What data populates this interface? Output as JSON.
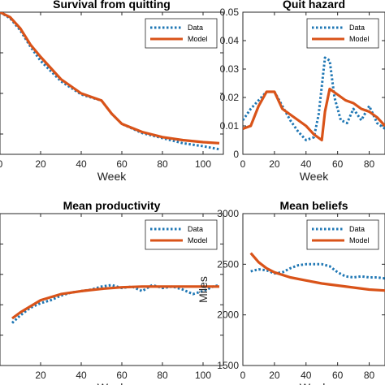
{
  "colors": {
    "data": "#1F77B4",
    "model": "#D95319",
    "axis": "#262626"
  },
  "chart_data": [
    {
      "type": "line",
      "title": "Survival from quitting",
      "xlabel": "Week",
      "ylabel": "",
      "xlim": [
        0,
        110
      ],
      "x_ticks": [
        "0",
        "20",
        "40",
        "60",
        "80",
        "100"
      ],
      "y_ticks": [],
      "legend": {
        "position": "top-right",
        "entries": [
          "Data",
          "Model"
        ]
      },
      "series": [
        {
          "name": "Data",
          "style": "dotted",
          "x": [
            0,
            5,
            10,
            15,
            20,
            30,
            40,
            50,
            55,
            60,
            70,
            80,
            90,
            100,
            108
          ],
          "y": [
            1.0,
            0.97,
            0.91,
            0.83,
            0.76,
            0.66,
            0.595,
            0.565,
            0.5,
            0.45,
            0.405,
            0.38,
            0.355,
            0.34,
            0.325
          ]
        },
        {
          "name": "Model",
          "style": "solid",
          "x": [
            0,
            5,
            10,
            15,
            20,
            30,
            40,
            50,
            55,
            60,
            70,
            80,
            90,
            100,
            108
          ],
          "y": [
            1.0,
            0.975,
            0.92,
            0.84,
            0.78,
            0.67,
            0.6,
            0.565,
            0.5,
            0.45,
            0.41,
            0.385,
            0.37,
            0.36,
            0.355
          ]
        }
      ]
    },
    {
      "type": "line",
      "title": "Quit hazard",
      "xlabel": "Week",
      "ylabel": "",
      "xlim": [
        0,
        90
      ],
      "ylim": [
        0,
        0.05
      ],
      "x_ticks": [
        "0",
        "20",
        "40",
        "60",
        "80"
      ],
      "y_ticks": [
        "0",
        "0.01",
        "0.02",
        "0.03",
        "0.04",
        "0.05"
      ],
      "legend": {
        "position": "top-right",
        "entries": [
          "Data",
          "Model"
        ]
      },
      "series": [
        {
          "name": "Data",
          "style": "dotted",
          "x": [
            0,
            5,
            10,
            15,
            20,
            25,
            30,
            35,
            40,
            45,
            48,
            52,
            55,
            58,
            62,
            66,
            70,
            75,
            80,
            85,
            90
          ],
          "y": [
            0.012,
            0.016,
            0.019,
            0.022,
            0.022,
            0.017,
            0.012,
            0.008,
            0.005,
            0.006,
            0.014,
            0.034,
            0.033,
            0.02,
            0.012,
            0.011,
            0.016,
            0.012,
            0.017,
            0.011,
            0.009
          ]
        },
        {
          "name": "Model",
          "style": "solid",
          "x": [
            0,
            5,
            10,
            15,
            20,
            25,
            30,
            35,
            40,
            45,
            50,
            52,
            55,
            60,
            65,
            70,
            75,
            80,
            85,
            90
          ],
          "y": [
            0.009,
            0.01,
            0.017,
            0.022,
            0.022,
            0.016,
            0.014,
            0.012,
            0.01,
            0.007,
            0.005,
            0.015,
            0.023,
            0.021,
            0.019,
            0.018,
            0.016,
            0.015,
            0.013,
            0.01
          ]
        }
      ]
    },
    {
      "type": "line",
      "title": "Mean productivity",
      "xlabel": "Week",
      "ylabel": "",
      "xlim": [
        0,
        110
      ],
      "x_ticks": [
        "20",
        "40",
        "60",
        "80",
        "100"
      ],
      "y_ticks": [],
      "legend": {
        "position": "top-right",
        "entries": [
          "Data",
          "Model"
        ]
      },
      "series": [
        {
          "name": "Data",
          "style": "dotted",
          "x": [
            6,
            10,
            15,
            20,
            25,
            30,
            35,
            40,
            45,
            50,
            55,
            60,
            65,
            70,
            75,
            80,
            85,
            90,
            95,
            100,
            105,
            108
          ],
          "y": [
            0.28,
            0.33,
            0.38,
            0.41,
            0.43,
            0.46,
            0.48,
            0.49,
            0.5,
            0.52,
            0.53,
            0.51,
            0.52,
            0.49,
            0.53,
            0.51,
            0.52,
            0.5,
            0.47,
            0.49,
            0.52,
            0.53
          ]
        },
        {
          "name": "Model",
          "style": "solid",
          "x": [
            6,
            10,
            15,
            20,
            30,
            40,
            50,
            60,
            70,
            80,
            90,
            100,
            108
          ],
          "y": [
            0.31,
            0.35,
            0.39,
            0.43,
            0.47,
            0.49,
            0.505,
            0.515,
            0.52,
            0.52,
            0.52,
            0.52,
            0.52
          ]
        }
      ]
    },
    {
      "type": "line",
      "title": "Mean beliefs",
      "xlabel": "Week",
      "ylabel": "Miles",
      "xlim": [
        0,
        90
      ],
      "ylim": [
        1500,
        3000
      ],
      "x_ticks": [
        "0",
        "20",
        "40",
        "60",
        "80"
      ],
      "y_ticks": [
        "1500",
        "2000",
        "2500",
        "3000"
      ],
      "legend": {
        "position": "top-right",
        "entries": [
          "Data",
          "Model"
        ]
      },
      "series": [
        {
          "name": "Data",
          "style": "dotted",
          "x": [
            5,
            10,
            15,
            20,
            25,
            30,
            35,
            40,
            45,
            50,
            55,
            60,
            65,
            70,
            75,
            80,
            85,
            90
          ],
          "y": [
            2430,
            2450,
            2440,
            2410,
            2420,
            2460,
            2490,
            2500,
            2500,
            2500,
            2480,
            2420,
            2380,
            2370,
            2380,
            2370,
            2370,
            2360
          ]
        },
        {
          "name": "Model",
          "style": "solid",
          "x": [
            5,
            10,
            15,
            20,
            30,
            40,
            50,
            60,
            70,
            80,
            90
          ],
          "y": [
            2610,
            2520,
            2460,
            2420,
            2370,
            2340,
            2310,
            2290,
            2270,
            2250,
            2240
          ]
        }
      ]
    }
  ]
}
